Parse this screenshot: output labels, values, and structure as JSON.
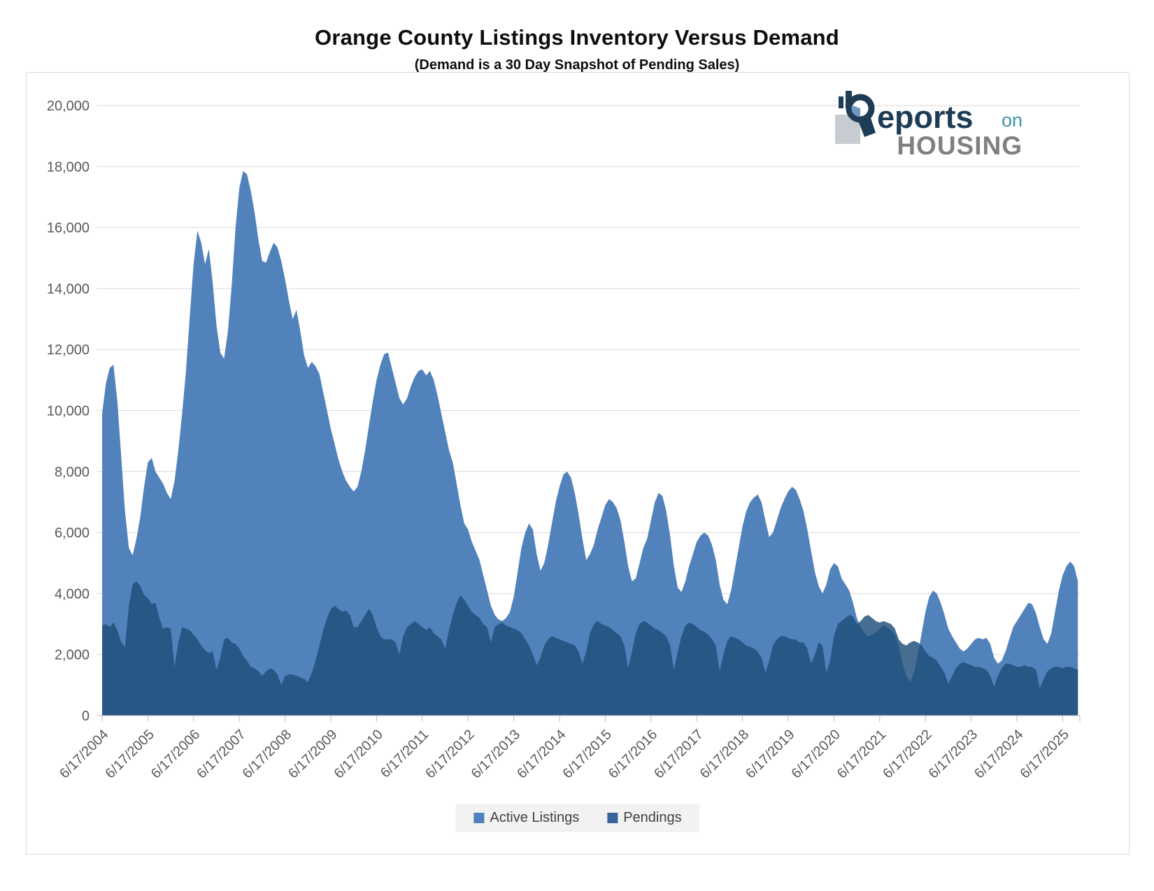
{
  "title": "Orange County Listings Inventory Versus Demand",
  "subtitle": "(Demand is a 30 Day Snapshot of Pending Sales)",
  "logo": {
    "reports_text": "eports",
    "on_text": "on",
    "housing_text": "HOUSING",
    "navy": "#1E3C55",
    "teal": "#3D96A1",
    "gray": "#808080"
  },
  "legend": [
    {
      "label": "Active Listings",
      "color": "#4E81BD"
    },
    {
      "label": "Pendings",
      "color": "#38639C"
    }
  ],
  "chart_data": {
    "type": "area",
    "title": "Orange County Listings Inventory Versus Demand",
    "subtitle": "(Demand is a 30 Day Snapshot of Pending Sales)",
    "xlabel": "",
    "ylabel": "",
    "ylim": [
      0,
      20000
    ],
    "grid": "horizontal",
    "legend_position": "bottom-center",
    "x_monthly_start": "6/2004",
    "x_tick_labels": [
      "6/17/2004",
      "6/17/2005",
      "6/17/2006",
      "6/17/2007",
      "6/17/2008",
      "6/17/2009",
      "6/17/2010",
      "6/17/2011",
      "6/17/2012",
      "6/17/2013",
      "6/17/2014",
      "6/17/2015",
      "6/17/2016",
      "6/17/2017",
      "6/17/2018",
      "6/17/2019",
      "6/17/2020",
      "6/17/2021",
      "6/17/2022",
      "6/17/2023",
      "6/17/2024",
      "6/17/2025"
    ],
    "y_tick_labels": [
      "0",
      "2,000",
      "4,000",
      "6,000",
      "8,000",
      "10,000",
      "12,000",
      "14,000",
      "16,000",
      "18,000",
      "20,000"
    ],
    "series": [
      {
        "name": "Active Listings",
        "color": "#5182BC",
        "opacity": 1,
        "values": [
          9900,
          10900,
          11400,
          11500,
          10300,
          8500,
          6700,
          5500,
          5250,
          5800,
          6500,
          7500,
          8300,
          8450,
          8000,
          7800,
          7600,
          7300,
          7100,
          7700,
          8700,
          9900,
          11300,
          13100,
          14800,
          15900,
          15500,
          14800,
          15300,
          14200,
          12800,
          11900,
          11700,
          12600,
          14100,
          16000,
          17300,
          17850,
          17750,
          17200,
          16500,
          15600,
          14900,
          14850,
          15200,
          15500,
          15350,
          14900,
          14300,
          13600,
          13000,
          13300,
          12600,
          11800,
          11400,
          11600,
          11450,
          11200,
          10600,
          10000,
          9400,
          8900,
          8400,
          8000,
          7700,
          7500,
          7350,
          7500,
          8000,
          8700,
          9500,
          10300,
          11000,
          11500,
          11850,
          11900,
          11400,
          10900,
          10400,
          10200,
          10400,
          10800,
          11100,
          11300,
          11350,
          11150,
          11300,
          11000,
          10500,
          9900,
          9300,
          8700,
          8300,
          7600,
          6900,
          6300,
          6100,
          5700,
          5400,
          5100,
          4600,
          4100,
          3600,
          3300,
          3150,
          3100,
          3200,
          3400,
          3900,
          4700,
          5500,
          6000,
          6300,
          6100,
          5300,
          4750,
          5000,
          5600,
          6300,
          7000,
          7500,
          7900,
          8000,
          7800,
          7300,
          6600,
          5800,
          5100,
          5300,
          5600,
          6100,
          6500,
          6900,
          7100,
          7000,
          6800,
          6400,
          5700,
          4900,
          4400,
          4500,
          5000,
          5500,
          5800,
          6400,
          7000,
          7300,
          7200,
          6700,
          5900,
          4900,
          4200,
          4050,
          4400,
          4900,
          5300,
          5700,
          5900,
          6000,
          5900,
          5600,
          5100,
          4300,
          3800,
          3650,
          4100,
          4800,
          5500,
          6200,
          6700,
          7000,
          7150,
          7250,
          7000,
          6400,
          5850,
          6000,
          6400,
          6800,
          7100,
          7350,
          7500,
          7400,
          7100,
          6700,
          6100,
          5400,
          4700,
          4250,
          4000,
          4300,
          4800,
          5000,
          4900,
          4500,
          4300,
          4100,
          3700,
          3200,
          2900,
          2700,
          2600,
          2650,
          2750,
          2850,
          2950,
          2900,
          2800,
          2650,
          2300,
          1700,
          1300,
          1100,
          1400,
          2000,
          2700,
          3400,
          3900,
          4100,
          4000,
          3700,
          3300,
          2850,
          2600,
          2400,
          2200,
          2100,
          2200,
          2350,
          2500,
          2550,
          2500,
          2550,
          2350,
          1900,
          1700,
          1800,
          2100,
          2500,
          2900,
          3100,
          3300,
          3500,
          3700,
          3650,
          3350,
          2900,
          2500,
          2350,
          2700,
          3400,
          4100,
          4600,
          4900,
          5050,
          4900,
          4400
        ]
      },
      {
        "name": "Pendings",
        "color": "#1F4E79",
        "opacity": 0.82,
        "values": [
          2950,
          3000,
          2900,
          3050,
          2800,
          2400,
          2250,
          3600,
          4300,
          4400,
          4250,
          3950,
          3850,
          3650,
          3700,
          3200,
          2850,
          2900,
          2850,
          1600,
          2400,
          2900,
          2850,
          2800,
          2650,
          2500,
          2300,
          2150,
          2050,
          2100,
          1500,
          1900,
          2500,
          2550,
          2400,
          2350,
          2200,
          1950,
          1800,
          1600,
          1550,
          1450,
          1300,
          1450,
          1550,
          1500,
          1350,
          1000,
          1300,
          1350,
          1350,
          1300,
          1250,
          1200,
          1100,
          1400,
          1800,
          2300,
          2800,
          3200,
          3500,
          3600,
          3500,
          3400,
          3450,
          3300,
          2900,
          2900,
          3100,
          3300,
          3500,
          3300,
          2900,
          2600,
          2500,
          2500,
          2500,
          2400,
          2000,
          2600,
          2900,
          3000,
          3100,
          3000,
          2900,
          2800,
          2900,
          2700,
          2600,
          2500,
          2200,
          2800,
          3300,
          3700,
          3950,
          3800,
          3600,
          3400,
          3300,
          3200,
          3000,
          2900,
          2400,
          2900,
          3000,
          3050,
          2950,
          2900,
          2850,
          2800,
          2700,
          2500,
          2300,
          2000,
          1650,
          1900,
          2300,
          2500,
          2600,
          2550,
          2500,
          2450,
          2400,
          2350,
          2300,
          2100,
          1700,
          2100,
          2700,
          3000,
          3100,
          3000,
          2950,
          2900,
          2800,
          2700,
          2600,
          2300,
          1550,
          2100,
          2700,
          3000,
          3100,
          3050,
          2950,
          2850,
          2800,
          2700,
          2600,
          2300,
          1500,
          2100,
          2600,
          2950,
          3050,
          3000,
          2900,
          2800,
          2750,
          2650,
          2500,
          2300,
          1450,
          2000,
          2450,
          2600,
          2550,
          2500,
          2400,
          2300,
          2250,
          2200,
          2100,
          1900,
          1400,
          1800,
          2300,
          2500,
          2600,
          2600,
          2550,
          2500,
          2500,
          2400,
          2400,
          2200,
          1700,
          2000,
          2400,
          2300,
          1400,
          1800,
          2600,
          3000,
          3100,
          3200,
          3300,
          3250,
          3000,
          3100,
          3250,
          3300,
          3200,
          3100,
          3050,
          3100,
          3050,
          3000,
          2850,
          2500,
          2350,
          2300,
          2400,
          2450,
          2400,
          2300,
          2100,
          1950,
          1900,
          1800,
          1600,
          1400,
          1050,
          1300,
          1550,
          1700,
          1750,
          1700,
          1650,
          1600,
          1600,
          1550,
          1500,
          1300,
          950,
          1300,
          1550,
          1700,
          1700,
          1650,
          1600,
          1600,
          1650,
          1600,
          1600,
          1500,
          900,
          1200,
          1450,
          1550,
          1600,
          1600,
          1550,
          1600,
          1600,
          1550,
          1500
        ]
      }
    ]
  }
}
